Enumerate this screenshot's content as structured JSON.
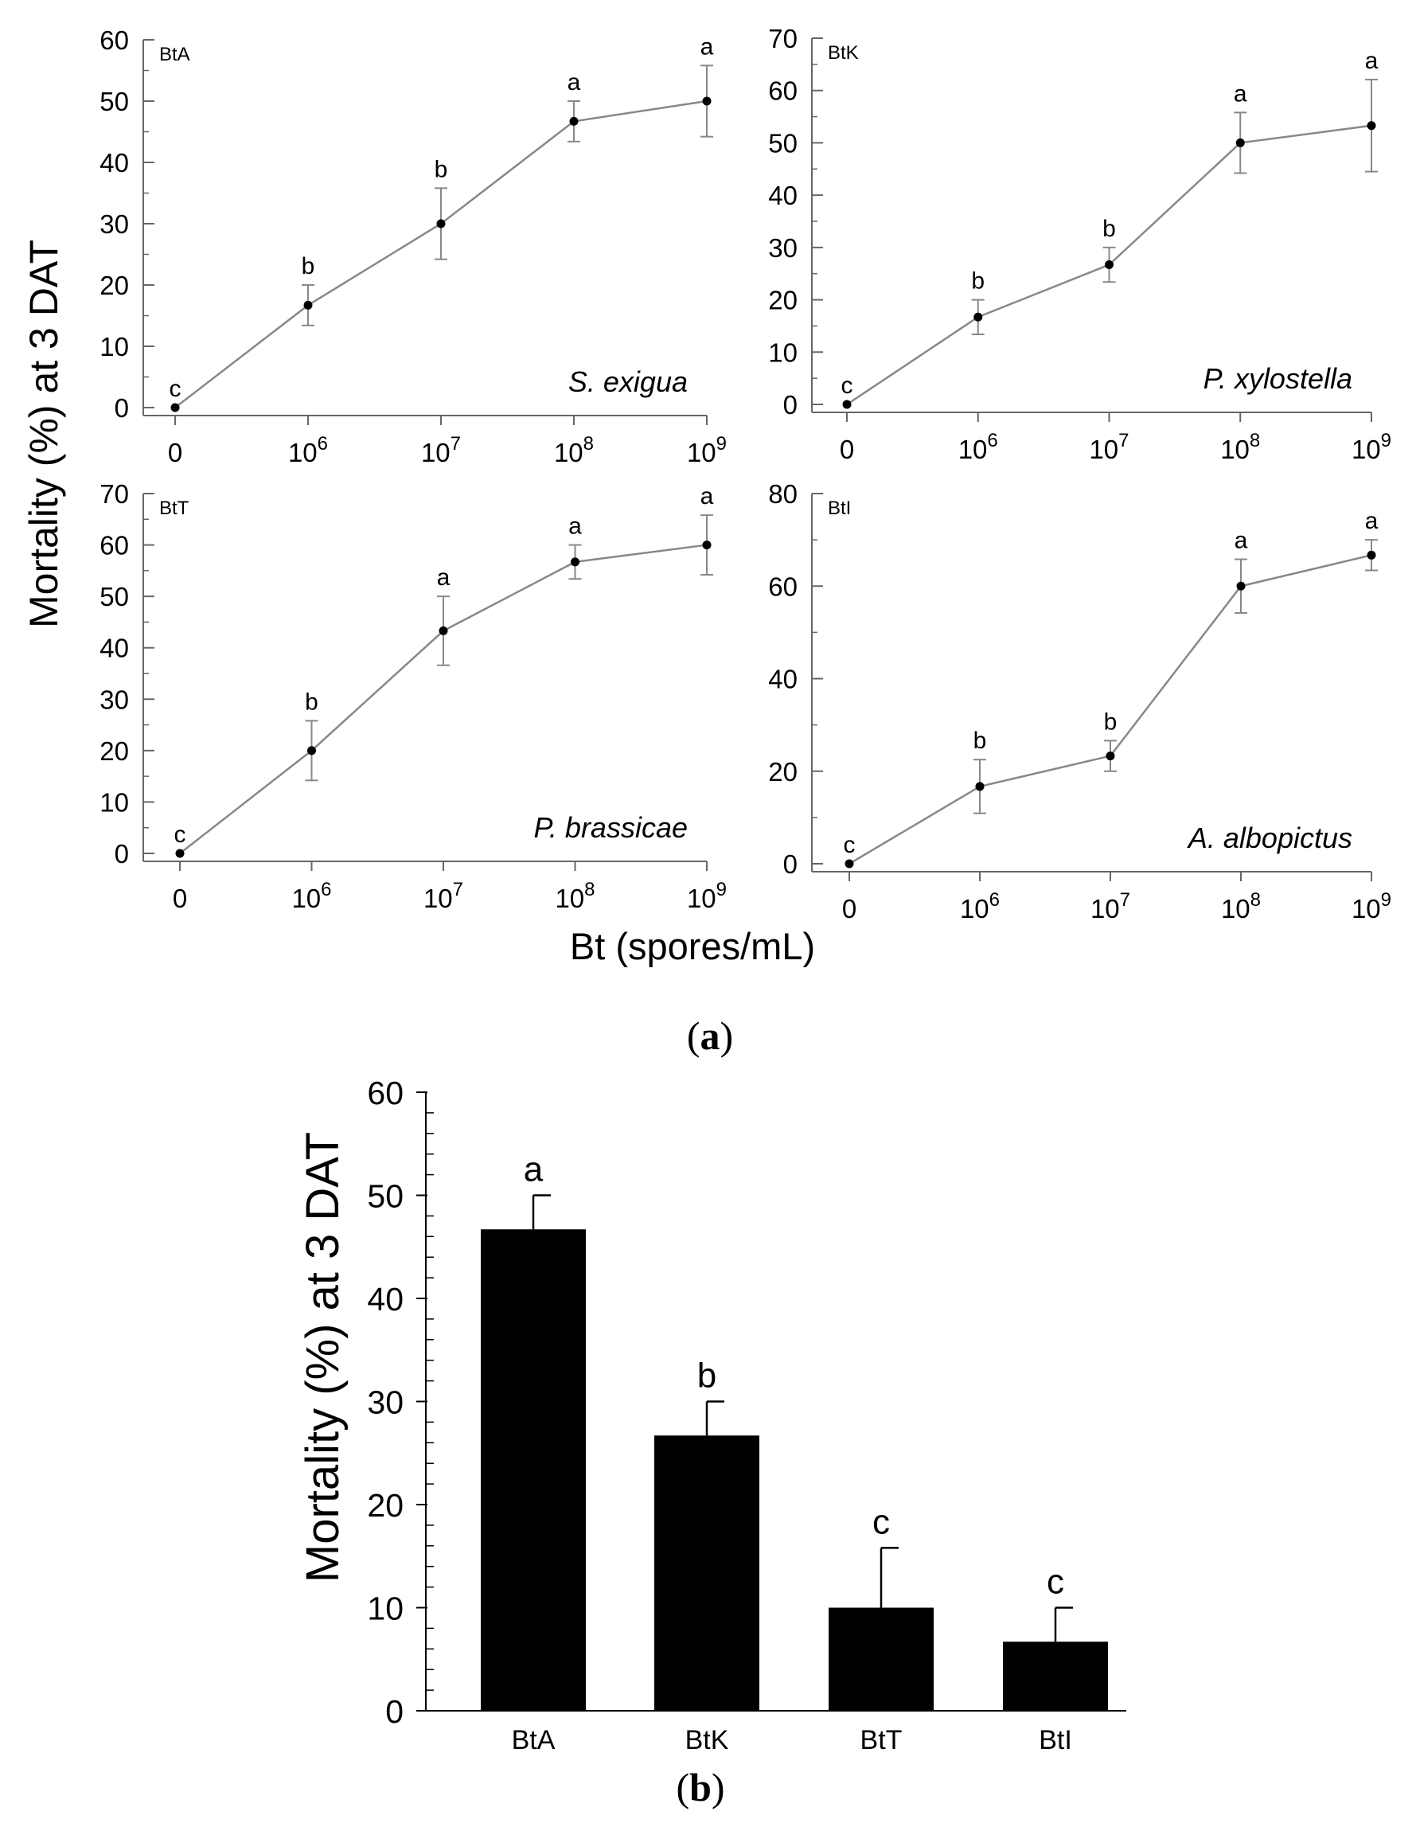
{
  "figure": {
    "shared_ylabel": "Mortality (%) at 3 DAT",
    "shared_xlabel": "Bt (spores/mL)",
    "panel_a_label": {
      "open": "(",
      "letter": "a",
      "close": ")"
    },
    "panel_b_label": {
      "open": "(",
      "letter": "b",
      "close": ")"
    }
  },
  "colors": {
    "line": "#888888",
    "axis": "#666666",
    "marker": "#000000",
    "bar": "#000000",
    "text": "#000000"
  },
  "chart_data": [
    {
      "id": "BtA",
      "type": "line",
      "strain": "BtA",
      "species": "S. exigua",
      "x_ticks": [
        {
          "base": "0",
          "exp": ""
        },
        {
          "base": "10",
          "exp": "6"
        },
        {
          "base": "10",
          "exp": "7"
        },
        {
          "base": "10",
          "exp": "8"
        },
        {
          "base": "10",
          "exp": "9"
        }
      ],
      "y": [
        0,
        16.7,
        30,
        46.7,
        50
      ],
      "err": [
        0,
        3.3,
        5.8,
        3.3,
        5.8
      ],
      "letters": [
        "c",
        "b",
        "b",
        "a",
        "a"
      ],
      "ylim": [
        0,
        60
      ],
      "yticks": [
        0,
        10,
        20,
        30,
        40,
        50,
        60
      ],
      "minor_step": 5
    },
    {
      "id": "BtK",
      "type": "line",
      "strain": "BtK",
      "species": "P. xylostella",
      "x_ticks": [
        {
          "base": "0",
          "exp": ""
        },
        {
          "base": "10",
          "exp": "6"
        },
        {
          "base": "10",
          "exp": "7"
        },
        {
          "base": "10",
          "exp": "8"
        },
        {
          "base": "10",
          "exp": "9"
        }
      ],
      "y": [
        0,
        16.7,
        26.7,
        50,
        53.3
      ],
      "err": [
        0,
        3.3,
        3.3,
        5.8,
        8.8
      ],
      "letters": [
        "c",
        "b",
        "b",
        "a",
        "a"
      ],
      "ylim": [
        0,
        70
      ],
      "yticks": [
        0,
        10,
        20,
        30,
        40,
        50,
        60,
        70
      ],
      "minor_step": 5
    },
    {
      "id": "BtT",
      "type": "line",
      "strain": "BtT",
      "species": "P. brassicae",
      "x_ticks": [
        {
          "base": "0",
          "exp": ""
        },
        {
          "base": "10",
          "exp": "6"
        },
        {
          "base": "10",
          "exp": "7"
        },
        {
          "base": "10",
          "exp": "8"
        },
        {
          "base": "10",
          "exp": "9"
        }
      ],
      "y": [
        0,
        20,
        43.3,
        56.7,
        60
      ],
      "err": [
        0,
        5.8,
        6.7,
        3.3,
        5.8
      ],
      "letters": [
        "c",
        "b",
        "a",
        "a",
        "a"
      ],
      "ylim": [
        0,
        70
      ],
      "yticks": [
        0,
        10,
        20,
        30,
        40,
        50,
        60,
        70
      ],
      "minor_step": 5
    },
    {
      "id": "BtI",
      "type": "line",
      "strain": "BtI",
      "species": "A. albopictus",
      "x_ticks": [
        {
          "base": "0",
          "exp": ""
        },
        {
          "base": "10",
          "exp": "6"
        },
        {
          "base": "10",
          "exp": "7"
        },
        {
          "base": "10",
          "exp": "8"
        },
        {
          "base": "10",
          "exp": "9"
        }
      ],
      "y": [
        0,
        16.7,
        23.3,
        60,
        66.7
      ],
      "err": [
        0,
        5.8,
        3.3,
        5.8,
        3.3
      ],
      "letters": [
        "c",
        "b",
        "b",
        "a",
        "a"
      ],
      "ylim": [
        0,
        80
      ],
      "yticks": [
        0,
        20,
        40,
        60,
        80
      ],
      "minor_step": 10
    },
    {
      "id": "bars",
      "type": "bar",
      "ylabel": "Mortality (%) at 3 DAT",
      "categories": [
        "BtA",
        "BtK",
        "BtT",
        "BtI"
      ],
      "values": [
        46.7,
        26.7,
        10,
        6.7
      ],
      "err": [
        3.3,
        3.3,
        5.8,
        3.3
      ],
      "letters": [
        "a",
        "b",
        "c",
        "c"
      ],
      "ylim": [
        0,
        60
      ],
      "yticks": [
        0,
        10,
        20,
        30,
        40,
        50,
        60
      ],
      "minor_step": 2
    }
  ]
}
